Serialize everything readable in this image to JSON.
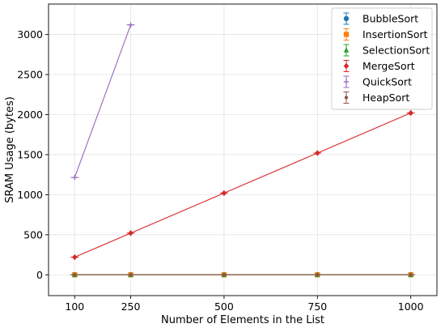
{
  "chart_data": {
    "type": "line",
    "title": "",
    "xlabel": "Number of Elements in the List",
    "ylabel": "SRAM Usage (bytes)",
    "x_ticks": [
      100,
      250,
      500,
      750,
      1000
    ],
    "y_ticks": [
      0,
      500,
      1000,
      1500,
      2000,
      2500,
      3000
    ],
    "xlim": [
      30,
      1070
    ],
    "ylim": [
      -260,
      3380
    ],
    "grid": true,
    "legend_position": "top-right",
    "error_bars": true,
    "series": [
      {
        "name": "BubbleSort",
        "color": "#1f77b4",
        "marker": "circle",
        "x": [
          100,
          250,
          500,
          750,
          1000
        ],
        "y": [
          0,
          0,
          0,
          0,
          0
        ]
      },
      {
        "name": "InsertionSort",
        "color": "#ff7f0e",
        "marker": "square",
        "x": [
          100,
          250,
          500,
          750,
          1000
        ],
        "y": [
          0,
          0,
          0,
          0,
          0
        ]
      },
      {
        "name": "SelectionSort",
        "color": "#2ca02c",
        "marker": "triangle",
        "x": [
          100,
          250,
          500,
          750,
          1000
        ],
        "y": [
          0,
          0,
          0,
          0,
          0
        ]
      },
      {
        "name": "MergeSort",
        "color": "#d62728",
        "marker": "diamond",
        "x": [
          100,
          250,
          500,
          750,
          1000
        ],
        "y": [
          220,
          520,
          1020,
          1520,
          2020
        ]
      },
      {
        "name": "QuickSort",
        "color": "#9467bd",
        "marker": "plus",
        "x": [
          100,
          250
        ],
        "y": [
          1215,
          3120
        ]
      },
      {
        "name": "HeapSort",
        "color": "#8c564b",
        "marker": "dot",
        "x": [
          100,
          250,
          500,
          750,
          1000
        ],
        "y": [
          0,
          0,
          0,
          0,
          0
        ]
      }
    ]
  }
}
